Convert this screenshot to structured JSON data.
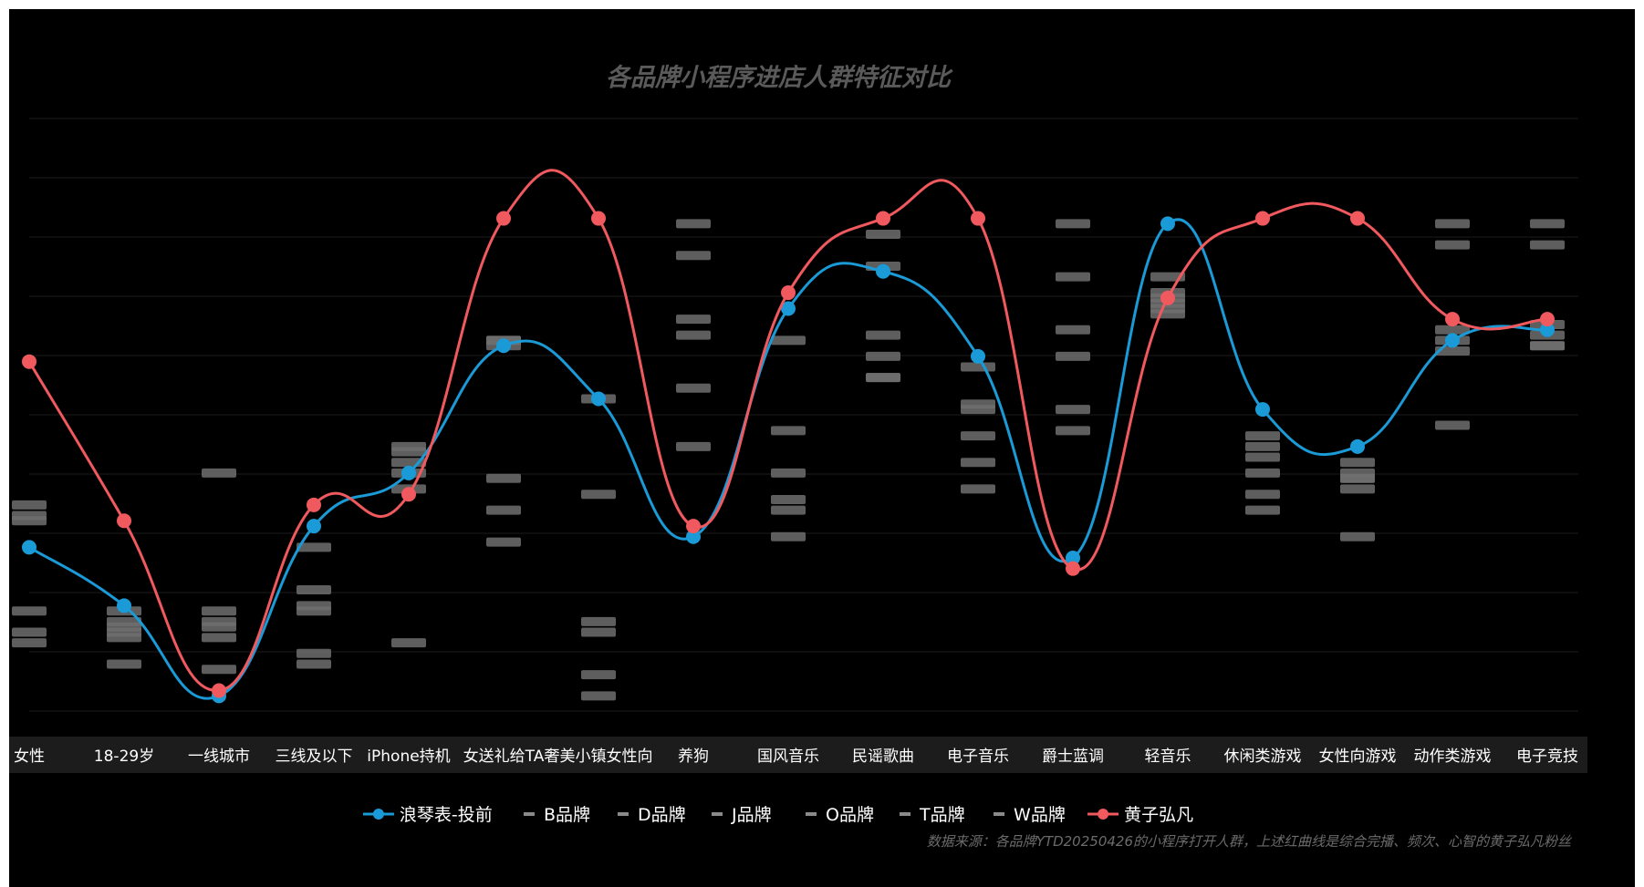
{
  "chart_data": {
    "type": "line",
    "title": "各品牌小程序进店人群特征对比",
    "source": "数据来源：各品牌YTD20250426的小程序打开人群，上述红曲线是综合完播、频次、心智的黄子弘凡粉丝",
    "categories": [
      "女性",
      "18-29岁",
      "一线城市",
      "三线及以下",
      "iPhone持机",
      "女送礼给TA",
      "奢美小镇女性向",
      "养狗",
      "国风音乐",
      "民谣歌曲",
      "电子音乐",
      "爵士蓝调",
      "轻音乐",
      "休闲类游戏",
      "女性向游戏",
      "动作类游戏",
      "电子竞技"
    ],
    "ylim": [
      0,
      10
    ],
    "grid": true,
    "legend_position": "bottom",
    "series": [
      {
        "name": "浪琴表-投前",
        "style": "line",
        "color": "#1a9ad6",
        "values": [
          3.0,
          1.9,
          0.2,
          3.4,
          4.4,
          6.8,
          5.8,
          3.2,
          7.5,
          8.2,
          6.6,
          2.8,
          9.1,
          5.6,
          4.9,
          6.9,
          7.1
        ]
      },
      {
        "name": "B品牌",
        "style": "marker",
        "values": [
          3.8,
          1.6,
          4.4,
          3.0,
          4.9,
          6.9,
          5.8,
          9.1,
          6.9,
          8.9,
          6.4,
          9.1,
          8.1,
          4.9,
          4.6,
          9.1,
          9.1
        ]
      },
      {
        "name": "D品牌",
        "style": "marker",
        "values": [
          3.5,
          1.4,
          1.8,
          2.2,
          4.8,
          6.8,
          4.0,
          8.5,
          5.2,
          8.3,
          5.6,
          8.1,
          7.8,
          5.1,
          4.4,
          8.7,
          8.7
        ]
      },
      {
        "name": "J品牌",
        "style": "marker",
        "values": [
          3.6,
          1.3,
          1.5,
          1.9,
          4.6,
          4.3,
          1.6,
          7.3,
          4.4,
          7.0,
          5.7,
          7.1,
          7.6,
          4.7,
          4.3,
          7.1,
          7.2
        ]
      },
      {
        "name": "O品牌",
        "style": "marker",
        "values": [
          1.8,
          1.8,
          1.6,
          1.8,
          4.4,
          3.7,
          1.4,
          7.0,
          3.9,
          6.6,
          5.1,
          6.6,
          7.4,
          4.4,
          4.1,
          6.9,
          7.0
        ]
      },
      {
        "name": "T品牌",
        "style": "marker",
        "values": [
          1.4,
          1.5,
          1.3,
          1.0,
          4.1,
          3.1,
          0.6,
          6.0,
          3.7,
          6.2,
          4.6,
          5.6,
          7.7,
          4.0,
          4.3,
          6.7,
          6.8
        ]
      },
      {
        "name": "W品牌",
        "style": "marker",
        "values": [
          1.2,
          0.8,
          0.7,
          0.8,
          1.2,
          6.9,
          0.2,
          4.9,
          3.2,
          6.2,
          4.1,
          5.2,
          7.5,
          3.7,
          3.2,
          5.3,
          6.8
        ]
      },
      {
        "name": "黄子弘凡",
        "style": "line",
        "color": "#f0595e",
        "values": [
          6.5,
          3.5,
          0.3,
          3.8,
          4.0,
          9.2,
          9.2,
          3.4,
          7.8,
          9.2,
          9.2,
          2.6,
          7.7,
          9.2,
          9.2,
          7.3,
          7.3
        ]
      }
    ]
  }
}
